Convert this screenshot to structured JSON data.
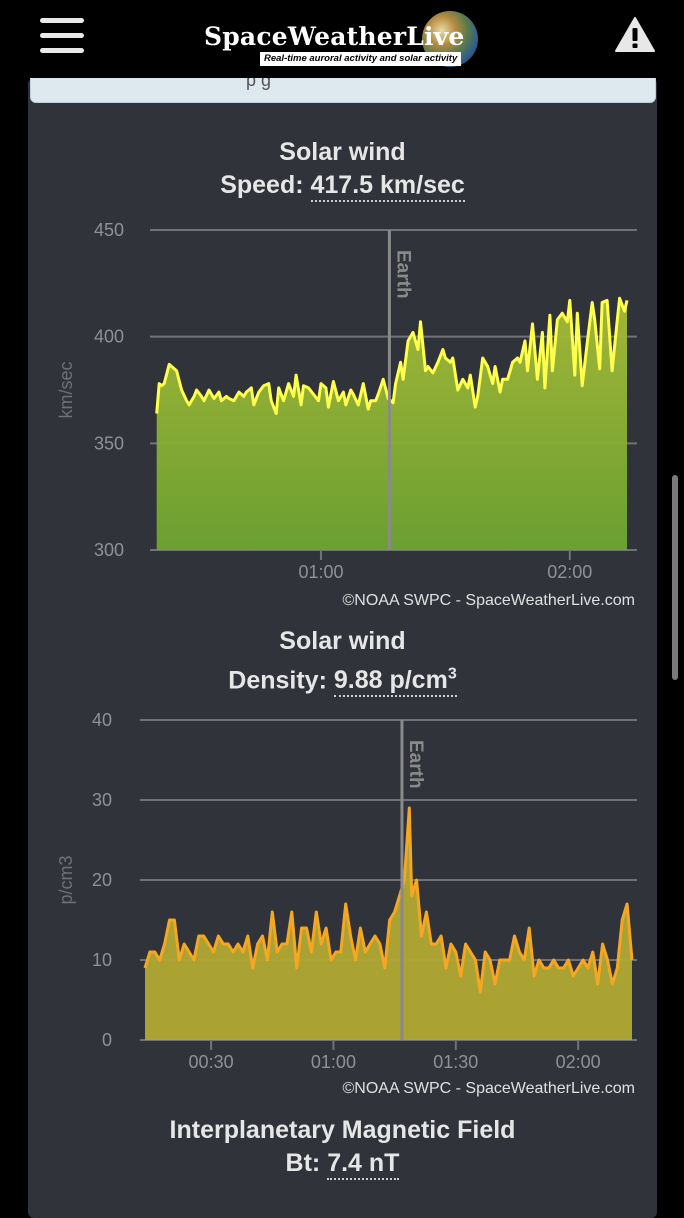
{
  "header": {
    "logo_text": "SpaceWeatherLive",
    "tagline": "Real-time auroral activity and solar activity",
    "menu_icon": "hamburger-menu-icon",
    "alert_icon": "warning-triangle-icon"
  },
  "notice": {
    "text": "p g"
  },
  "speed": {
    "title": "Solar wind",
    "label": "Speed:",
    "value": "417.5 km/sec"
  },
  "density": {
    "title": "Solar wind",
    "label": "Density:",
    "value": "9.88 p/cm",
    "superscript": "3"
  },
  "imf": {
    "title": "Interplanetary Magnetic Field",
    "label": "Bt:",
    "value": "7.4 nT"
  },
  "credit": "©NOAA SWPC - SpaceWeatherLive.com",
  "earth_marker_label": "Earth",
  "colors": {
    "speed_line": "#ffff4d",
    "speed_fill_top": "#a8bc37",
    "speed_fill_bottom": "#6ea531",
    "density_line": "#f5a623",
    "density_fill": "#b0a832",
    "panel": "#30343a"
  },
  "chart_data": [
    {
      "type": "area",
      "title": "Solar wind",
      "ylabel": "km/sec",
      "ylim": [
        300,
        450
      ],
      "yticks": [
        300,
        350,
        400,
        450
      ],
      "xlim": [
        0.333,
        2.25
      ],
      "xticks": [
        {
          "v": 1.0,
          "label": "01:00"
        },
        {
          "v": 2.0,
          "label": "02:00"
        }
      ],
      "grid": true,
      "earth_marker_x": 1.275,
      "series": [
        {
          "x": [
            0.34,
            0.35,
            0.36,
            0.37,
            0.39,
            0.4,
            0.42,
            0.44,
            0.46,
            0.47,
            0.49,
            0.5,
            0.52,
            0.53,
            0.55,
            0.57,
            0.59,
            0.6,
            0.62,
            0.63,
            0.65,
            0.67,
            0.69,
            0.7,
            0.72,
            0.73,
            0.75,
            0.77,
            0.79,
            0.8,
            0.82,
            0.83,
            0.85,
            0.87,
            0.89,
            0.9,
            0.92,
            0.93,
            0.95,
            0.97,
            0.99,
            1.0,
            1.02,
            1.03,
            1.05,
            1.07,
            1.09,
            1.1,
            1.12,
            1.13,
            1.15,
            1.17,
            1.19,
            1.2,
            1.22,
            1.23,
            1.25,
            1.27,
            1.29,
            1.3,
            1.32,
            1.33,
            1.35,
            1.37,
            1.39,
            1.4,
            1.42,
            1.43,
            1.45,
            1.47,
            1.49,
            1.5,
            1.52,
            1.53,
            1.55,
            1.57,
            1.59,
            1.6,
            1.62,
            1.63,
            1.65,
            1.67,
            1.69,
            1.7,
            1.72,
            1.73,
            1.75,
            1.77,
            1.79,
            1.8,
            1.82,
            1.83,
            1.85,
            1.87,
            1.89,
            1.9,
            1.92,
            1.93,
            1.95,
            1.97,
            1.99,
            2.0,
            2.02,
            2.03,
            2.05,
            2.07,
            2.09,
            2.1,
            2.12,
            2.13,
            2.15,
            2.17,
            2.19,
            2.2,
            2.22,
            2.23
          ],
          "y": [
            364,
            378,
            377,
            378,
            387,
            386,
            384,
            375,
            370,
            368,
            372,
            375,
            372,
            370,
            375,
            371,
            374,
            370,
            372,
            371,
            370,
            374,
            372,
            374,
            376,
            368,
            374,
            377,
            378,
            370,
            364,
            376,
            370,
            378,
            372,
            382,
            368,
            377,
            376,
            373,
            370,
            378,
            376,
            367,
            379,
            370,
            374,
            368,
            375,
            373,
            368,
            378,
            366,
            370,
            370,
            373,
            380,
            371,
            369,
            378,
            388,
            380,
            398,
            402,
            394,
            407,
            384,
            386,
            383,
            388,
            394,
            390,
            388,
            390,
            375,
            380,
            376,
            382,
            367,
            372,
            390,
            386,
            378,
            386,
            374,
            380,
            380,
            388,
            390,
            388,
            398,
            384,
            406,
            380,
            402,
            376,
            410,
            384,
            408,
            411,
            407,
            417,
            382,
            411,
            377,
            397,
            416,
            408,
            385,
            416,
            417,
            384,
            407,
            418,
            412,
            417
          ]
        }
      ]
    },
    {
      "type": "area",
      "title": "Solar wind",
      "ylabel": "p/cm3",
      "ylim": [
        0,
        40
      ],
      "yticks": [
        0,
        10,
        20,
        30,
        40
      ],
      "xlim": [
        0.23,
        2.22
      ],
      "xticks": [
        {
          "v": 0.5,
          "label": "00:30"
        },
        {
          "v": 1.0,
          "label": "01:00"
        },
        {
          "v": 1.5,
          "label": "01:30"
        },
        {
          "v": 2.0,
          "label": "02:00"
        }
      ],
      "grid": true,
      "earth_marker_x": 1.28,
      "series": [
        {
          "x": [
            0.23,
            0.25,
            0.27,
            0.29,
            0.31,
            0.33,
            0.35,
            0.37,
            0.39,
            0.41,
            0.43,
            0.45,
            0.47,
            0.49,
            0.51,
            0.53,
            0.55,
            0.57,
            0.59,
            0.61,
            0.63,
            0.65,
            0.67,
            0.69,
            0.71,
            0.73,
            0.75,
            0.77,
            0.79,
            0.81,
            0.83,
            0.85,
            0.87,
            0.89,
            0.91,
            0.93,
            0.95,
            0.97,
            0.99,
            1.01,
            1.03,
            1.05,
            1.07,
            1.09,
            1.11,
            1.13,
            1.15,
            1.17,
            1.19,
            1.21,
            1.23,
            1.25,
            1.27,
            1.29,
            1.31,
            1.32,
            1.34,
            1.36,
            1.38,
            1.4,
            1.42,
            1.44,
            1.46,
            1.48,
            1.5,
            1.52,
            1.54,
            1.56,
            1.58,
            1.6,
            1.62,
            1.64,
            1.66,
            1.68,
            1.7,
            1.72,
            1.74,
            1.76,
            1.78,
            1.8,
            1.82,
            1.84,
            1.86,
            1.88,
            1.9,
            1.92,
            1.94,
            1.96,
            1.98,
            2.0,
            2.02,
            2.04,
            2.06,
            2.08,
            2.1,
            2.12,
            2.14,
            2.16,
            2.18,
            2.2,
            2.22
          ],
          "y": [
            9,
            11,
            11,
            10,
            12,
            15,
            15,
            10,
            12,
            11,
            10,
            13,
            13,
            12,
            11,
            13,
            12,
            12,
            11,
            12,
            11,
            13,
            9,
            12,
            13,
            10,
            16,
            11,
            12,
            12,
            16,
            9,
            14,
            14,
            11,
            16,
            12,
            14,
            10,
            11,
            11,
            17,
            13,
            10,
            14,
            11,
            12,
            13,
            12,
            9,
            15,
            16,
            18,
            20,
            29,
            18,
            20,
            13,
            16,
            12,
            12,
            13,
            9,
            12,
            11,
            8,
            12,
            11,
            10,
            6,
            11,
            10,
            7,
            10,
            10,
            10,
            13,
            11,
            10,
            14,
            8,
            10,
            9,
            9,
            10,
            9,
            9,
            10,
            8,
            9,
            10,
            9,
            11,
            7,
            12,
            10,
            7,
            9,
            15,
            17,
            10
          ]
        }
      ]
    }
  ]
}
